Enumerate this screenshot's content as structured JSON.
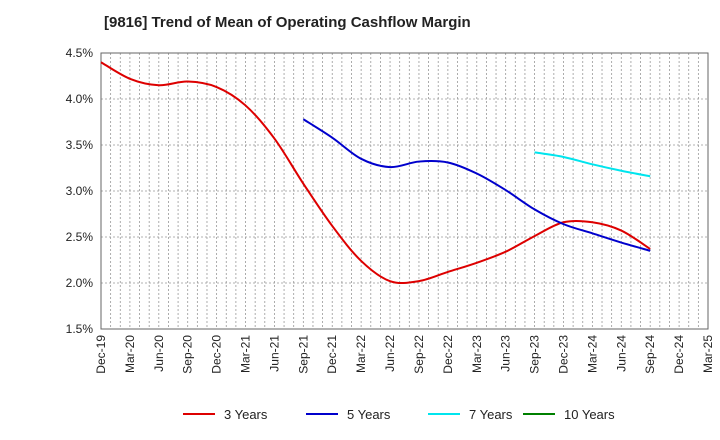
{
  "chart_data": {
    "type": "line",
    "title": "[9816]  Trend of Mean of Operating Cashflow Margin",
    "x_categories": [
      "Dec-19",
      "Mar-20",
      "Jun-20",
      "Sep-20",
      "Dec-20",
      "Mar-21",
      "Jun-21",
      "Sep-21",
      "Dec-21",
      "Mar-22",
      "Jun-22",
      "Sep-22",
      "Dec-22",
      "Mar-23",
      "Jun-23",
      "Sep-23",
      "Dec-23",
      "Mar-24",
      "Jun-24",
      "Sep-24",
      "Dec-24",
      "Mar-25"
    ],
    "y_ticks": [
      "1.5%",
      "2.0%",
      "2.5%",
      "3.0%",
      "3.5%",
      "4.0%",
      "4.5%"
    ],
    "ylim": [
      1.5,
      4.5
    ],
    "grid": true,
    "legend_position": "bottom",
    "series": [
      {
        "name": "3 Years",
        "color": "#dd0000",
        "x": [
          "Dec-19",
          "Mar-20",
          "Jun-20",
          "Sep-20",
          "Dec-20",
          "Mar-21",
          "Jun-21",
          "Sep-21",
          "Dec-21",
          "Mar-22",
          "Jun-22",
          "Sep-22",
          "Dec-22",
          "Mar-23",
          "Jun-23",
          "Sep-23",
          "Dec-23",
          "Mar-24",
          "Jun-24",
          "Sep-24"
        ],
        "y": [
          4.4,
          4.22,
          4.15,
          4.19,
          4.13,
          3.93,
          3.57,
          3.08,
          2.62,
          2.24,
          2.02,
          2.02,
          2.12,
          2.22,
          2.34,
          2.51,
          2.66,
          2.66,
          2.57,
          2.37
        ]
      },
      {
        "name": "5 Years",
        "color": "#0000cc",
        "x": [
          "Sep-21",
          "Dec-21",
          "Mar-22",
          "Jun-22",
          "Sep-22",
          "Dec-22",
          "Mar-23",
          "Jun-23",
          "Sep-23",
          "Dec-23",
          "Mar-24",
          "Jun-24",
          "Sep-24"
        ],
        "y": [
          3.78,
          3.58,
          3.35,
          3.26,
          3.32,
          3.31,
          3.19,
          3.01,
          2.8,
          2.64,
          2.54,
          2.44,
          2.35
        ]
      },
      {
        "name": "7 Years",
        "color": "#00e5ee",
        "x": [
          "Sep-23",
          "Dec-23",
          "Mar-24",
          "Jun-24",
          "Sep-24"
        ],
        "y": [
          3.42,
          3.37,
          3.29,
          3.22,
          3.16
        ]
      },
      {
        "name": "10 Years",
        "color": "#008000",
        "x": [],
        "y": []
      }
    ]
  }
}
